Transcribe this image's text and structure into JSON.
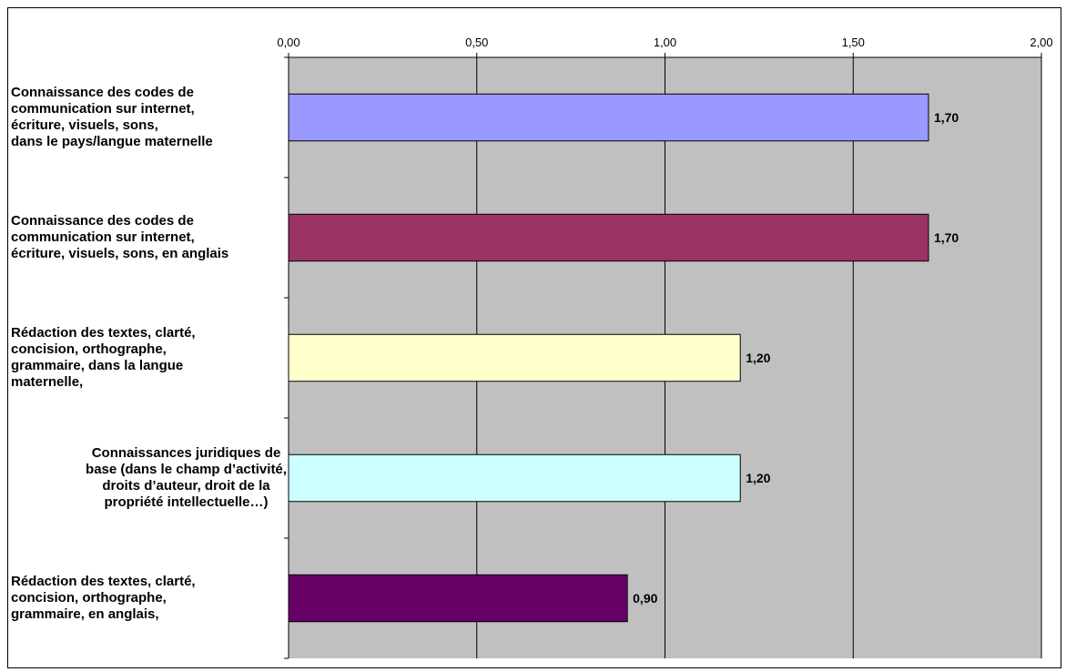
{
  "chart_data": {
    "type": "bar",
    "orientation": "horizontal",
    "title": "",
    "xlabel": "",
    "ylabel": "",
    "xlim": [
      0,
      2
    ],
    "x_ticks": [
      "0,00",
      "0,50",
      "1,00",
      "1,50",
      "2,00"
    ],
    "x_tick_values": [
      0,
      0.5,
      1,
      1.5,
      2
    ],
    "axis_position": "top",
    "grid": "vertical",
    "plot_background": "#c0c0c0",
    "categories": [
      {
        "lines": [
          "Connaissance des  codes de",
          "communication sur internet,",
          "écriture, visuels, sons,",
          "dans le pays/langue maternelle"
        ],
        "align": "left"
      },
      {
        "lines": [
          "Connaissance des  codes de",
          "communication sur internet,",
          "écriture, visuels, sons, en anglais"
        ],
        "align": "left"
      },
      {
        "lines": [
          "Rédaction des textes, clarté,",
          "concision, orthographe,",
          "grammaire, dans la langue",
          "maternelle,"
        ],
        "align": "left"
      },
      {
        "lines": [
          "Connaissances juridiques de",
          "base (dans le champ d’activité,",
          "droits d’auteur, droit de la",
          "propriété intellectuelle…)"
        ],
        "align": "center"
      },
      {
        "lines": [
          "Rédaction des textes, clarté,",
          "concision, orthographe,",
          "grammaire, en anglais,"
        ],
        "align": "left"
      }
    ],
    "values": [
      1.7,
      1.7,
      1.2,
      1.2,
      0.9
    ],
    "value_labels": [
      "1,70",
      "1,70",
      "1,20",
      "1,20",
      "0,90"
    ],
    "bar_colors": [
      "#9999ff",
      "#993366",
      "#ffffcc",
      "#ccffff",
      "#660066"
    ],
    "legend": "none"
  }
}
